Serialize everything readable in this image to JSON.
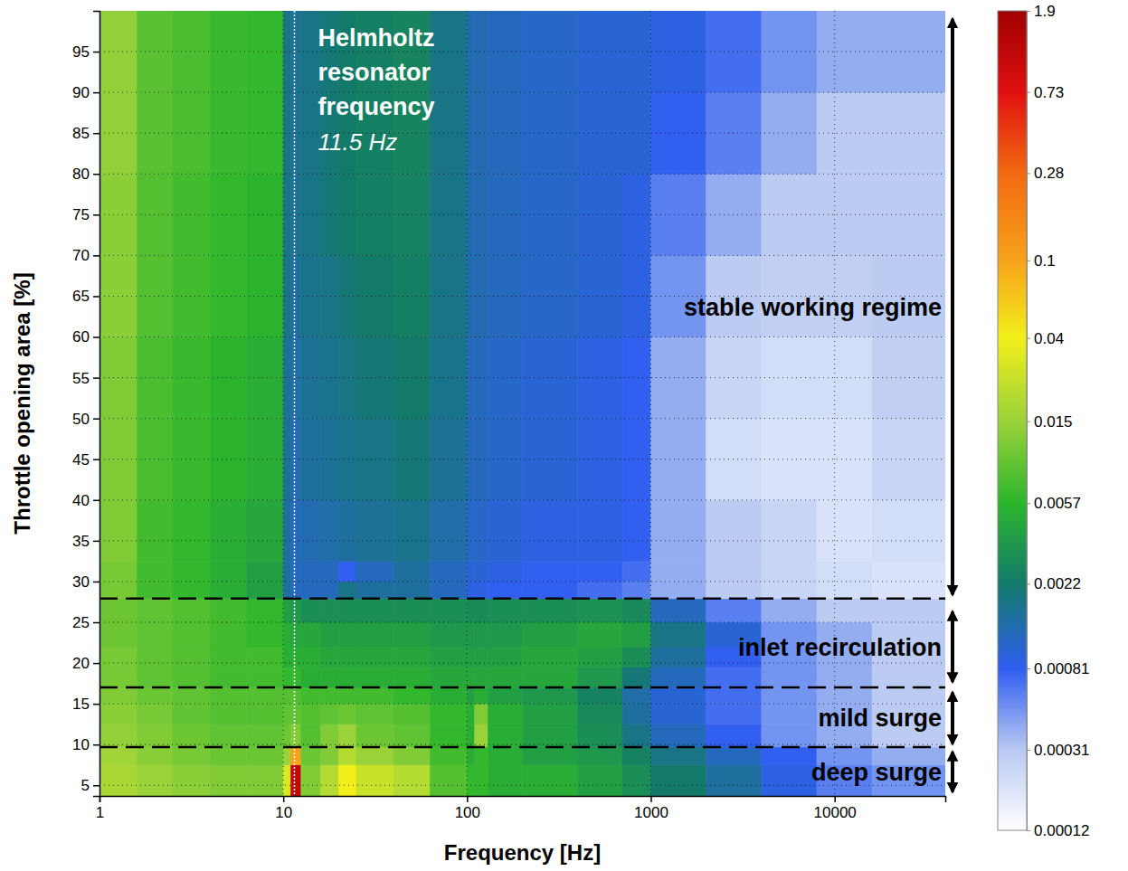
{
  "chart_data": {
    "type": "heatmap",
    "x_label": "Frequency [Hz]",
    "y_label": "Throttle opening area [%]",
    "log": "x",
    "grid": true,
    "xlim": [
      1,
      40000
    ],
    "ylim": [
      3.7,
      100
    ],
    "xticks": [
      1,
      10,
      100,
      1000,
      10000
    ],
    "yticks": [
      5,
      10,
      15,
      20,
      25,
      30,
      35,
      40,
      45,
      50,
      55,
      60,
      65,
      70,
      75,
      80,
      85,
      90,
      95
    ],
    "x_edges": [
      1,
      1.6,
      2.5,
      4,
      6.3,
      10,
      11,
      12.5,
      16,
      20,
      25,
      40,
      63,
      100,
      110,
      130,
      200,
      400,
      700,
      1000,
      2000,
      4000,
      8000,
      16000,
      40000
    ],
    "y_edges": [
      3.7,
      7.5,
      9.7,
      12.5,
      15,
      17,
      19.5,
      22,
      25,
      27.9,
      30,
      32.5,
      40,
      50,
      60,
      70,
      80,
      90,
      100
    ],
    "cells": [
      [
        0.018,
        0.015,
        0.013,
        0.012,
        0.012,
        0.03,
        1.2,
        0.012,
        0.02,
        0.04,
        0.025,
        0.02,
        0.008,
        0.006,
        0.006,
        0.005,
        0.005,
        0.004,
        0.003,
        0.0022,
        0.0015,
        0.0009,
        0.0006,
        0.0005
      ],
      [
        0.016,
        0.013,
        0.011,
        0.01,
        0.01,
        0.015,
        0.1,
        0.01,
        0.012,
        0.02,
        0.015,
        0.012,
        0.007,
        0.005,
        0.006,
        0.005,
        0.004,
        0.0035,
        0.0025,
        0.0018,
        0.0012,
        0.0008,
        0.0005,
        0.0004
      ],
      [
        0.014,
        0.012,
        0.01,
        0.009,
        0.009,
        0.01,
        0.012,
        0.008,
        0.012,
        0.015,
        0.01,
        0.009,
        0.006,
        0.005,
        0.015,
        0.005,
        0.004,
        0.003,
        0.0018,
        0.0012,
        0.0008,
        0.0005,
        0.0004,
        0.0003
      ],
      [
        0.013,
        0.011,
        0.009,
        0.008,
        0.008,
        0.009,
        0.009,
        0.008,
        0.009,
        0.01,
        0.009,
        0.008,
        0.006,
        0.005,
        0.012,
        0.005,
        0.004,
        0.0028,
        0.0015,
        0.001,
        0.0007,
        0.0005,
        0.0004,
        0.0003
      ],
      [
        0.012,
        0.01,
        0.009,
        0.008,
        0.008,
        0.008,
        0.008,
        0.007,
        0.007,
        0.007,
        0.007,
        0.006,
        0.005,
        0.004,
        0.005,
        0.004,
        0.0035,
        0.0025,
        0.0014,
        0.001,
        0.0007,
        0.0005,
        0.0004,
        0.0003
      ],
      [
        0.011,
        0.009,
        0.008,
        0.007,
        0.007,
        0.006,
        0.006,
        0.005,
        0.005,
        0.005,
        0.005,
        0.005,
        0.0045,
        0.0045,
        0.0045,
        0.0045,
        0.0045,
        0.0035,
        0.002,
        0.0012,
        0.0007,
        0.0005,
        0.0004,
        0.0003
      ],
      [
        0.011,
        0.009,
        0.008,
        0.007,
        0.007,
        0.005,
        0.005,
        0.005,
        0.0045,
        0.0045,
        0.0045,
        0.0045,
        0.004,
        0.004,
        0.004,
        0.004,
        0.0045,
        0.004,
        0.003,
        0.0015,
        0.0008,
        0.0005,
        0.0004,
        0.0003
      ],
      [
        0.01,
        0.009,
        0.008,
        0.007,
        0.006,
        0.005,
        0.0045,
        0.0045,
        0.004,
        0.004,
        0.004,
        0.004,
        0.0035,
        0.0035,
        0.0035,
        0.0035,
        0.004,
        0.0045,
        0.004,
        0.0018,
        0.001,
        0.0005,
        0.0004,
        0.0003
      ],
      [
        0.01,
        0.009,
        0.008,
        0.007,
        0.006,
        0.004,
        0.0035,
        0.003,
        0.003,
        0.003,
        0.003,
        0.003,
        0.003,
        0.0028,
        0.0028,
        0.003,
        0.003,
        0.0032,
        0.0028,
        0.0012,
        0.0006,
        0.0004,
        0.0003,
        0.0003
      ],
      [
        0.011,
        0.007,
        0.006,
        0.005,
        0.004,
        0.0015,
        0.0012,
        0.0012,
        0.0012,
        0.0018,
        0.0015,
        0.0015,
        0.0012,
        0.0009,
        0.0009,
        0.0008,
        0.0008,
        0.0007,
        0.0006,
        0.0004,
        0.0003,
        0.00025,
        0.00022,
        0.0002
      ],
      [
        0.011,
        0.007,
        0.006,
        0.005,
        0.004,
        0.0015,
        0.0012,
        0.0012,
        0.0012,
        0.0008,
        0.0012,
        0.0015,
        0.0012,
        0.001,
        0.001,
        0.0009,
        0.0008,
        0.0008,
        0.0007,
        0.0004,
        0.0003,
        0.00025,
        0.00022,
        0.0002
      ],
      [
        0.012,
        0.007,
        0.006,
        0.005,
        0.0045,
        0.0015,
        0.0012,
        0.0013,
        0.0014,
        0.0015,
        0.0016,
        0.0017,
        0.0014,
        0.0011,
        0.0011,
        0.001,
        0.0009,
        0.0009,
        0.0008,
        0.0004,
        0.0003,
        0.00025,
        0.0002,
        0.00022
      ],
      [
        0.012,
        0.0075,
        0.0065,
        0.0055,
        0.005,
        0.0016,
        0.0013,
        0.0015,
        0.0016,
        0.0017,
        0.0018,
        0.002,
        0.0016,
        0.0012,
        0.0012,
        0.0011,
        0.001,
        0.0009,
        0.0008,
        0.0004,
        0.00022,
        0.0002,
        0.0002,
        0.00025
      ],
      [
        0.012,
        0.0075,
        0.0065,
        0.0055,
        0.005,
        0.0016,
        0.0014,
        0.0016,
        0.0017,
        0.0018,
        0.002,
        0.0022,
        0.0017,
        0.0012,
        0.0012,
        0.0011,
        0.001,
        0.0009,
        0.0008,
        0.0004,
        0.00025,
        0.00022,
        0.00022,
        0.00028
      ],
      [
        0.013,
        0.008,
        0.007,
        0.006,
        0.0055,
        0.0018,
        0.0015,
        0.0017,
        0.0018,
        0.002,
        0.0022,
        0.0024,
        0.0018,
        0.0013,
        0.0013,
        0.0012,
        0.0011,
        0.001,
        0.0009,
        0.0005,
        0.0003,
        0.00028,
        0.00028,
        0.0003
      ],
      [
        0.013,
        0.008,
        0.007,
        0.006,
        0.0055,
        0.0018,
        0.0016,
        0.0018,
        0.002,
        0.0022,
        0.0024,
        0.0025,
        0.0018,
        0.0013,
        0.0013,
        0.0012,
        0.0011,
        0.001,
        0.0009,
        0.0006,
        0.0004,
        0.0003,
        0.0003,
        0.0003
      ],
      [
        0.014,
        0.0085,
        0.0075,
        0.0065,
        0.006,
        0.0018,
        0.0016,
        0.0018,
        0.002,
        0.0022,
        0.0024,
        0.0026,
        0.0018,
        0.0013,
        0.0013,
        0.0012,
        0.0011,
        0.001,
        0.001,
        0.0008,
        0.0006,
        0.0004,
        0.0003,
        0.0003
      ],
      [
        0.014,
        0.0085,
        0.0075,
        0.0065,
        0.006,
        0.0018,
        0.0016,
        0.0018,
        0.002,
        0.0022,
        0.0024,
        0.0026,
        0.0018,
        0.0013,
        0.0013,
        0.0012,
        0.0011,
        0.001,
        0.001,
        0.0009,
        0.0007,
        0.0005,
        0.0004,
        0.0004
      ]
    ],
    "colorbar": {
      "log": true,
      "range": [
        0.00012,
        1.9
      ],
      "ticks": [
        0.00012,
        0.00031,
        0.00081,
        0.0022,
        0.0057,
        0.015,
        0.04,
        0.1,
        0.28,
        0.73,
        1.9
      ]
    },
    "helmholtz": {
      "label": "Helmholtz resonator frequency",
      "value_label": "11.5 Hz",
      "frequency": 11.5
    },
    "boundaries": [
      27.9,
      17,
      9.7
    ],
    "regimes": [
      {
        "label": "stable working regime",
        "from": 28.2,
        "to": 99.2
      },
      {
        "label": "inlet recirculation",
        "from": 17.5,
        "to": 26.5
      },
      {
        "label": "mild surge",
        "from": 9.9,
        "to": 16.6
      },
      {
        "label": "deep surge",
        "from": 4.0,
        "to": 9.3
      }
    ]
  }
}
